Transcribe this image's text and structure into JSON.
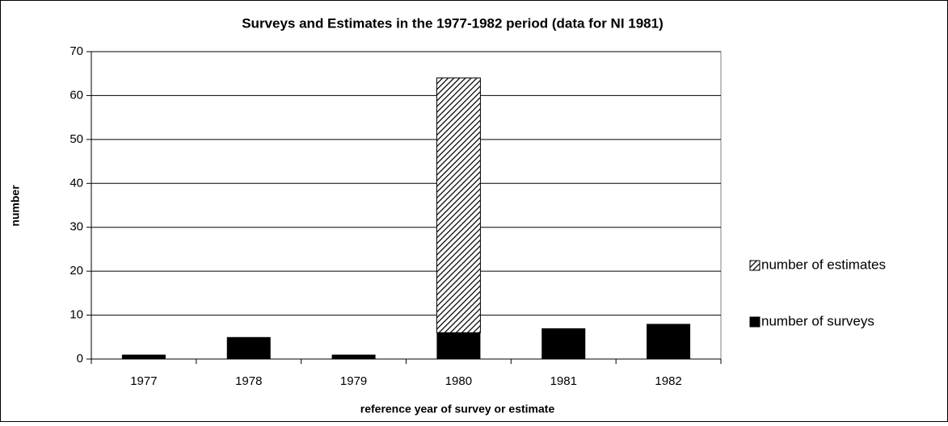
{
  "chart_data": {
    "type": "stacked-bar",
    "title": "Surveys and Estimates in the 1977-1982 period (data for NI 1981)",
    "x_label": "reference year of survey or estimate",
    "y_label": "number",
    "categories": [
      "1977",
      "1978",
      "1979",
      "1980",
      "1981",
      "1982"
    ],
    "series": [
      {
        "name": "number of surveys",
        "color": "#000000",
        "values": [
          1,
          5,
          1,
          6,
          7,
          8
        ]
      },
      {
        "name": "number of estimates",
        "color": "#000000",
        "hatch": true,
        "values": [
          0,
          0,
          0,
          58,
          0,
          0
        ]
      }
    ],
    "ylim": [
      0,
      70
    ],
    "yticks": [
      0,
      10,
      20,
      30,
      40,
      50,
      60,
      70
    ],
    "grid": true,
    "legend": "right"
  }
}
